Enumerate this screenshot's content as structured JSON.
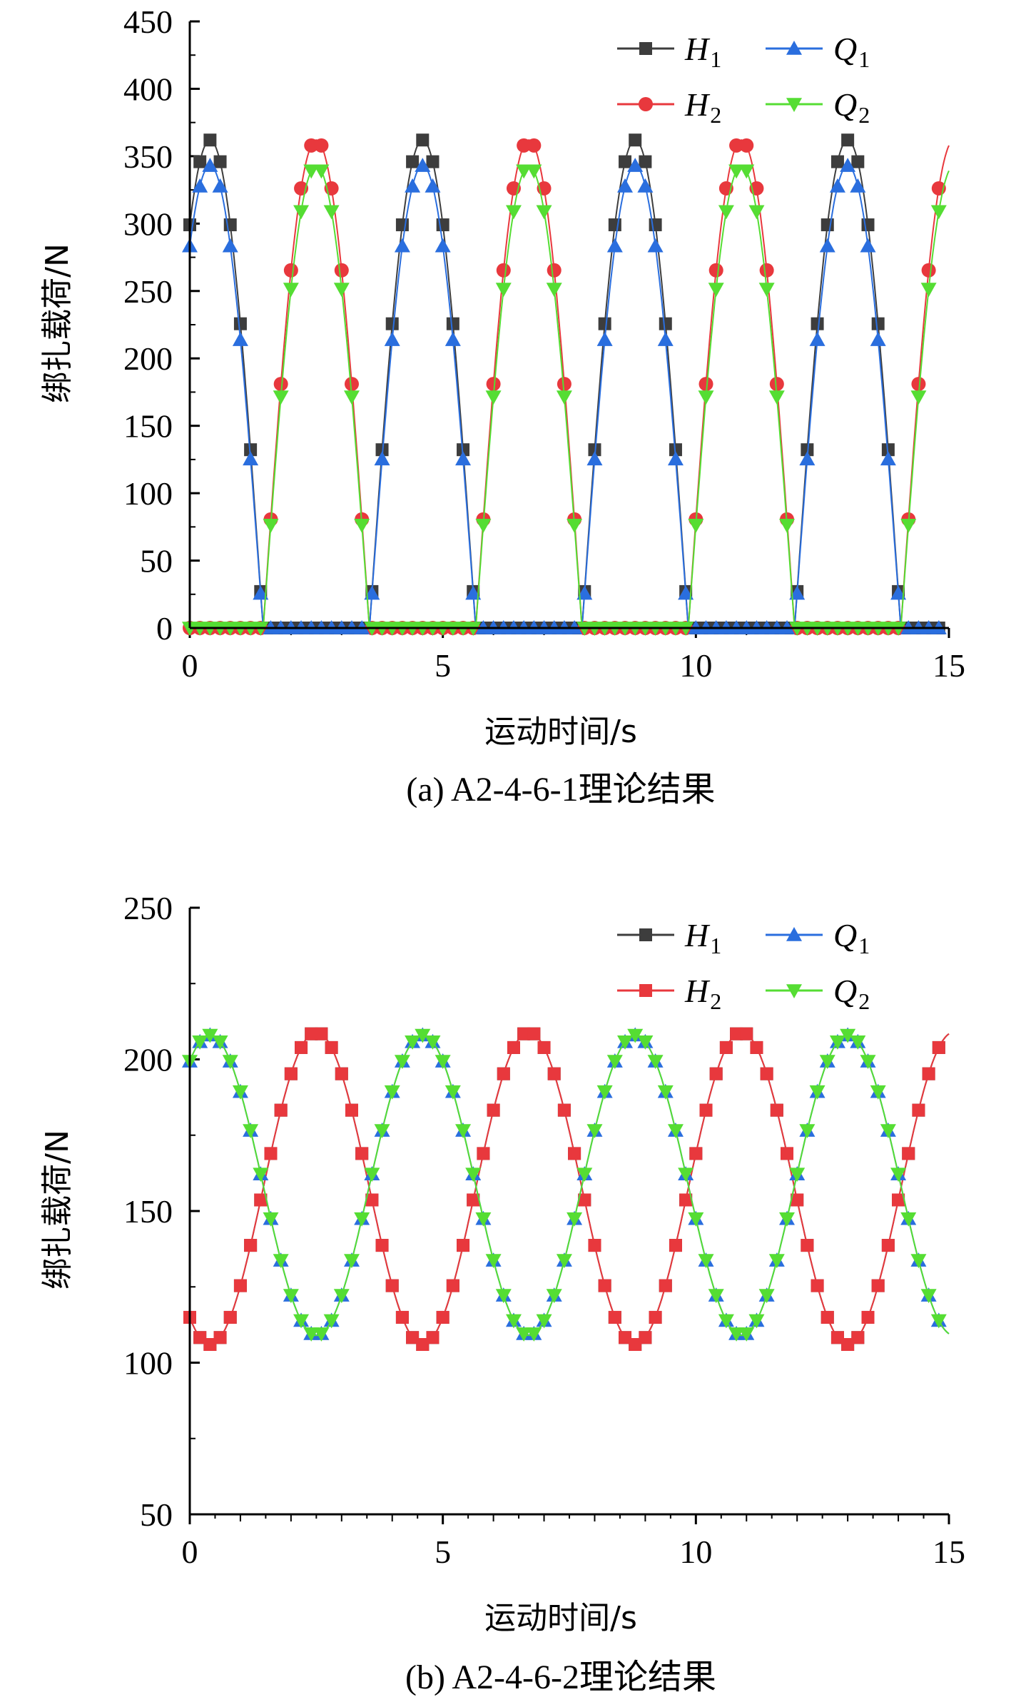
{
  "chart_data": [
    {
      "type": "line",
      "caption": "(a) A2-4-6-1理论结果",
      "xlabel": "运动时间/s",
      "ylabel": "绑扎载荷/N",
      "xlim": [
        0,
        15
      ],
      "ylim": [
        0,
        450
      ],
      "xticks": [
        0,
        5,
        10,
        15
      ],
      "yticks": [
        0,
        50,
        100,
        150,
        200,
        250,
        300,
        350,
        400,
        450
      ],
      "legend_position": "top-right",
      "model": {
        "period": 4.2,
        "peak_phase": 0.4
      },
      "series": [
        {
          "name": "H",
          "sub": "1",
          "color": "#3d3d3d",
          "marker": "square",
          "amplitude": 362,
          "floor": 0,
          "shift": 0
        },
        {
          "name": "H",
          "sub": "2",
          "color": "#e8383d",
          "marker": "circle",
          "amplitude": 362,
          "floor": 0,
          "shift": 2.1
        },
        {
          "name": "Q",
          "sub": "1",
          "color": "#2a6ede",
          "marker": "triangle-up",
          "amplitude": 343,
          "floor": 0,
          "shift": 0
        },
        {
          "name": "Q",
          "sub": "2",
          "color": "#55dd33",
          "marker": "triangle-down",
          "amplitude": 343,
          "floor": 0,
          "shift": 2.1
        }
      ]
    },
    {
      "type": "line",
      "caption": "(b) A2-4-6-2理论结果",
      "xlabel": "运动时间/s",
      "ylabel": "绑扎载荷/N",
      "xlim": [
        0,
        15
      ],
      "ylim": [
        50,
        250
      ],
      "xticks": [
        0,
        5,
        10,
        15
      ],
      "yticks": [
        50,
        100,
        150,
        200,
        250
      ],
      "legend_position": "top-right",
      "model": {
        "period": 4.2,
        "peak_phase": 0.4
      },
      "series": [
        {
          "name": "H",
          "sub": "1",
          "color": "#3d3d3d",
          "marker": "square",
          "mean": 157.5,
          "amplitude": 51.5,
          "shift": 2.1
        },
        {
          "name": "H",
          "sub": "2",
          "color": "#e8383d",
          "marker": "square",
          "mean": 157.5,
          "amplitude": 51.5,
          "shift": 2.1
        },
        {
          "name": "Q",
          "sub": "1",
          "color": "#2a6ede",
          "marker": "triangle-up",
          "mean": 158.5,
          "amplitude": 49.5,
          "shift": 0
        },
        {
          "name": "Q",
          "sub": "2",
          "color": "#55dd33",
          "marker": "triangle-down",
          "mean": 158.5,
          "amplitude": 49.5,
          "shift": 0
        }
      ]
    }
  ]
}
